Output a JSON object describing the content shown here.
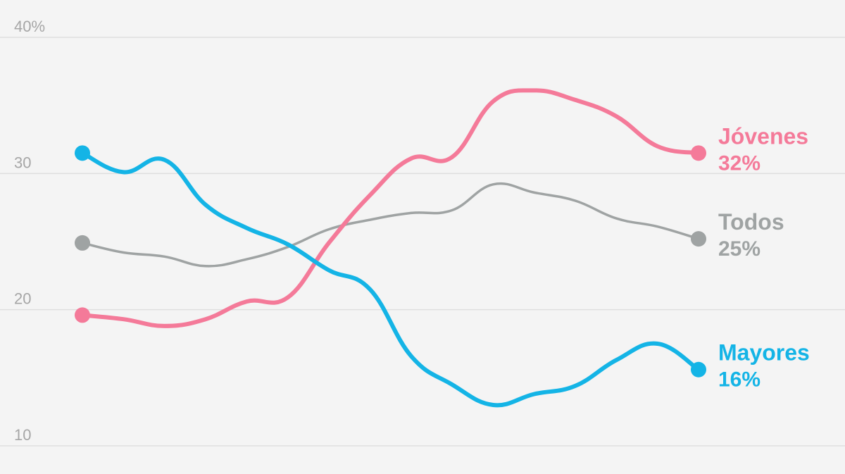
{
  "chart_data": {
    "type": "line",
    "title": "",
    "xlabel": "",
    "ylabel": "",
    "ylim": [
      10,
      40
    ],
    "y_ticks": [
      {
        "value": 40,
        "label": "40%"
      },
      {
        "value": 30,
        "label": "30"
      },
      {
        "value": 20,
        "label": "20"
      },
      {
        "value": 10,
        "label": "10"
      }
    ],
    "grid": true,
    "x": [
      0,
      1,
      2,
      3,
      4,
      5,
      6,
      7,
      8,
      9,
      10,
      11,
      12,
      13,
      14,
      15
    ],
    "series": [
      {
        "name": "Jóvenes",
        "value_label": "32%",
        "color": "#f47a99",
        "values": [
          19.6,
          19.3,
          18.8,
          19.3,
          20.6,
          20.9,
          24.9,
          28.4,
          31.1,
          31.2,
          35.3,
          36.1,
          35.4,
          34.2,
          32.0,
          31.5
        ]
      },
      {
        "name": "Todos",
        "value_label": "25%",
        "color": "#9fa3a3",
        "values": [
          24.9,
          24.2,
          23.9,
          23.2,
          23.7,
          24.6,
          25.9,
          26.6,
          27.1,
          27.3,
          29.2,
          28.6,
          28.0,
          26.7,
          26.1,
          25.2
        ]
      },
      {
        "name": "Mayores",
        "value_label": "16%",
        "color": "#14b4e6",
        "values": [
          31.5,
          30.1,
          31.0,
          27.7,
          26.0,
          24.8,
          22.9,
          21.5,
          16.6,
          14.5,
          13.0,
          13.8,
          14.4,
          16.3,
          17.5,
          15.6
        ]
      }
    ]
  }
}
